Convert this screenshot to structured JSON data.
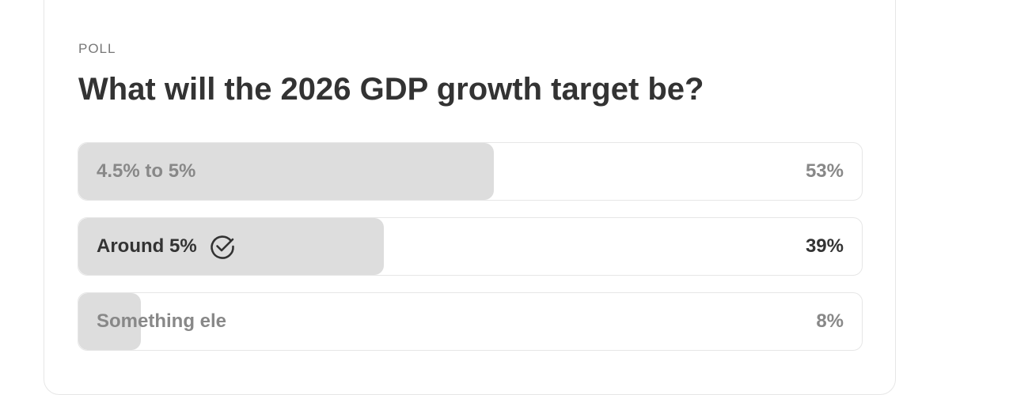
{
  "poll": {
    "label": "POLL",
    "question": "What will the 2026 GDP growth target be?",
    "options": [
      {
        "label": "4.5% to 5%",
        "percent_label": "53%",
        "fraction": 0.53,
        "selected": false
      },
      {
        "label": "Around 5%",
        "percent_label": "39%",
        "fraction": 0.39,
        "selected": true,
        "icon": "check-circle-icon"
      },
      {
        "label": "Something ele",
        "percent_label": "8%",
        "fraction": 0.08,
        "selected": false
      }
    ]
  },
  "colors": {
    "fill": "#dddddd",
    "text_selected": "#333333",
    "text_muted": "#888888",
    "border": "#e6e6e6"
  }
}
